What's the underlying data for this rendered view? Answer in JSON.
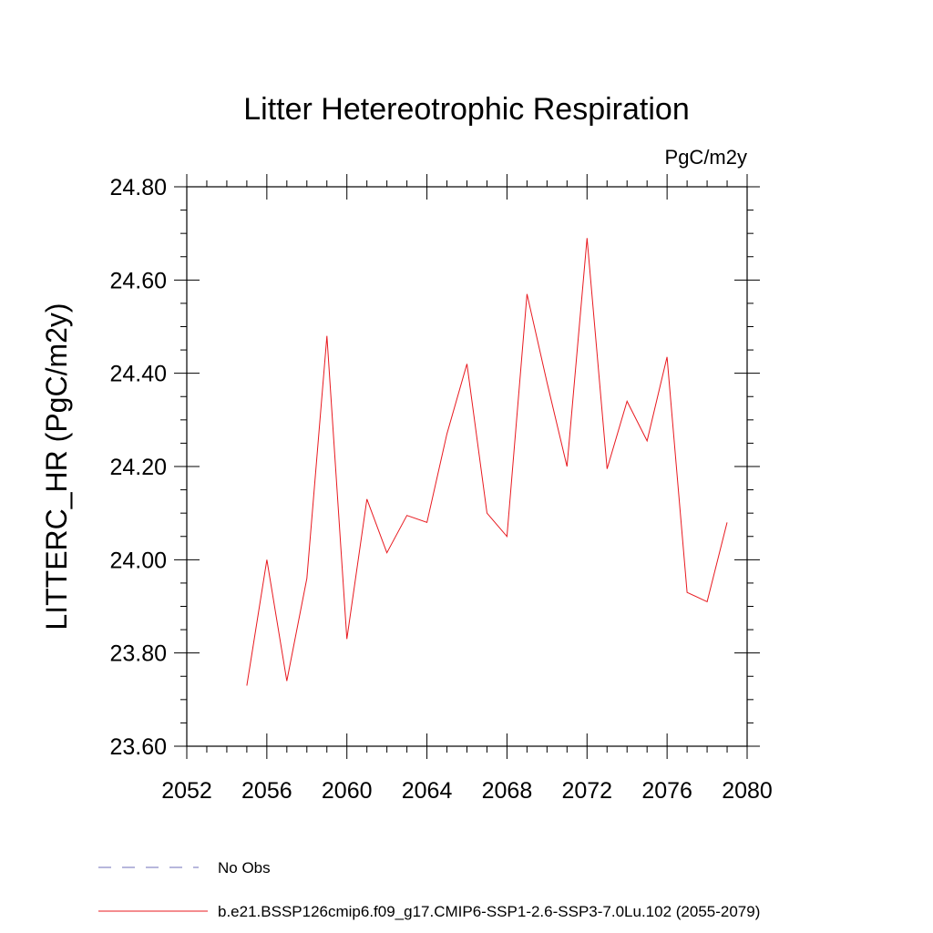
{
  "chart_data": {
    "type": "line",
    "title": "Litter Hetereotrophic Respiration",
    "units_label": "PgC/m2y",
    "ylabel": "LITTERC_HR  (PgC/m2y)",
    "xlabel": "",
    "xlim": [
      2052,
      2080
    ],
    "ylim": [
      23.6,
      24.8
    ],
    "x_ticks": [
      2052,
      2056,
      2060,
      2064,
      2068,
      2072,
      2076,
      2080
    ],
    "x_tick_labels": [
      "2052",
      "2056",
      "2060",
      "2064",
      "2068",
      "2072",
      "2076",
      "2080"
    ],
    "y_ticks": [
      23.6,
      23.8,
      24.0,
      24.2,
      24.4,
      24.6,
      24.8
    ],
    "y_tick_labels": [
      "23.60",
      "23.80",
      "24.00",
      "24.20",
      "24.40",
      "24.60",
      "24.80"
    ],
    "grid": false,
    "legend_placement": "bottom",
    "series": [
      {
        "name": "b.e21.BSSP126cmip6.f09_g17.CMIP6-SSP1-2.6-SSP3-7.0Lu.102 (2055-2079)",
        "color": "#e8191f",
        "style": "solid",
        "x": [
          2055,
          2056,
          2057,
          2058,
          2059,
          2060,
          2061,
          2062,
          2063,
          2064,
          2065,
          2066,
          2067,
          2068,
          2069,
          2070,
          2071,
          2072,
          2073,
          2074,
          2075,
          2076,
          2077,
          2078,
          2079
        ],
        "y": [
          23.73,
          24.0,
          23.74,
          23.96,
          24.48,
          23.83,
          24.13,
          24.015,
          24.095,
          24.08,
          24.27,
          24.42,
          24.1,
          24.05,
          24.57,
          24.38,
          24.2,
          24.69,
          24.195,
          24.34,
          24.255,
          24.435,
          23.93,
          23.91,
          24.08
        ]
      },
      {
        "name": "No Obs",
        "color": "#6f6fb8",
        "style": "dashed",
        "x": [],
        "y": []
      }
    ]
  }
}
